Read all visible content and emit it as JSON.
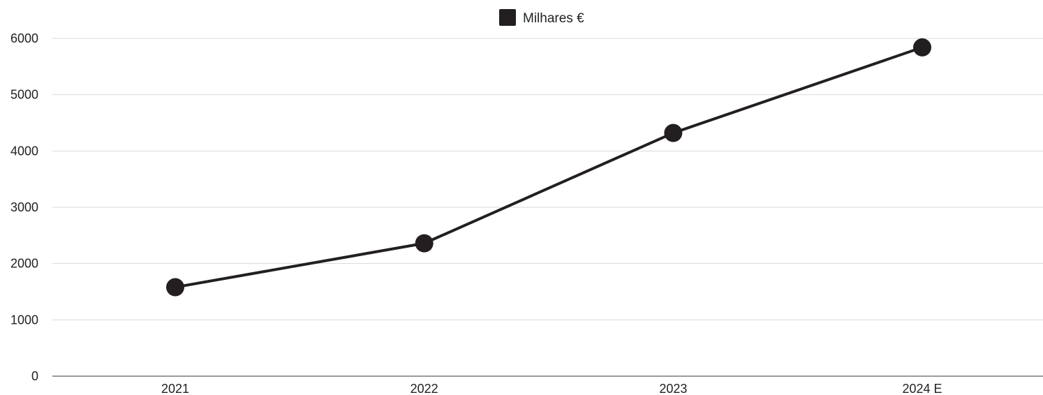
{
  "chart_data": {
    "type": "line",
    "categories": [
      "2021",
      "2022",
      "2023",
      "2024 E"
    ],
    "series": [
      {
        "name": "Milhares €",
        "values": [
          1580,
          2360,
          4320,
          5840
        ]
      }
    ],
    "ylim": [
      0,
      6000
    ],
    "yticks": [
      "0",
      "1000",
      "2000",
      "3000",
      "4000",
      "5000",
      "6000"
    ],
    "grid": true,
    "legend_position": "top-center",
    "colors": {
      "series": "#231f20",
      "grid": "#d9d9d9",
      "axis": "#333333",
      "text": "#222222"
    }
  }
}
